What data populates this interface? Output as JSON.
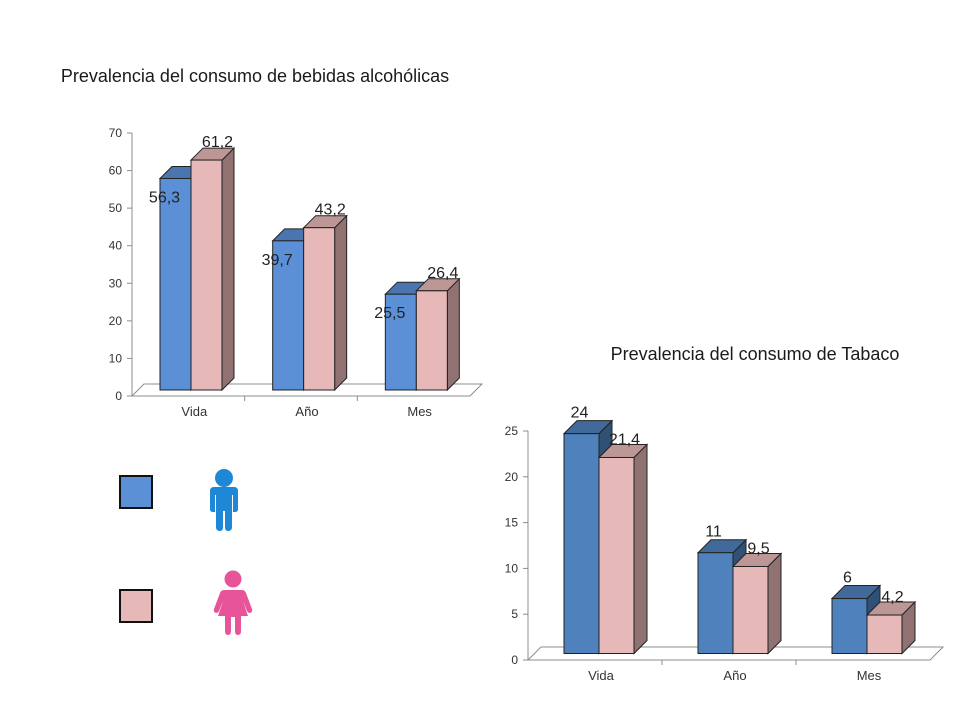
{
  "legend": {
    "series": [
      {
        "icon": "male-person-icon",
        "color": "#5b8fd6"
      },
      {
        "icon": "female-person-icon",
        "color": "#e6b8b7"
      }
    ]
  },
  "chart_data": [
    {
      "type": "bar",
      "title": "Prevalencia del consumo de bebidas alcohólicas",
      "categories": [
        "Vida",
        "Año",
        "Mes"
      ],
      "series": [
        {
          "values": [
            56.3,
            39.7,
            25.5
          ],
          "labels": [
            "56,3",
            "39,7",
            "25,5"
          ],
          "color": "#5b8fd6"
        },
        {
          "values": [
            61.2,
            43.2,
            26.4
          ],
          "labels": [
            "61,2",
            "43,2",
            "26,4"
          ],
          "color": "#e6b8b7"
        }
      ],
      "ylim": [
        0,
        70
      ],
      "yticks": [
        0,
        10,
        20,
        30,
        40,
        50,
        60,
        70
      ],
      "grid": false,
      "style": "3d-clustered-bar"
    },
    {
      "type": "bar",
      "title": "Prevalencia del consumo de Tabaco",
      "categories": [
        "Vida",
        "Año",
        "Mes"
      ],
      "series": [
        {
          "values": [
            24,
            11,
            6
          ],
          "labels": [
            "24",
            "11",
            "6"
          ],
          "color": "#4f81bd"
        },
        {
          "values": [
            21.4,
            9.5,
            4.2
          ],
          "labels": [
            "21,4",
            "9,5",
            "4,2"
          ],
          "color": "#e6b8b7"
        }
      ],
      "ylim": [
        0,
        25
      ],
      "yticks": [
        0,
        5,
        10,
        15,
        20,
        25
      ],
      "grid": false,
      "style": "3d-clustered-bar"
    }
  ]
}
